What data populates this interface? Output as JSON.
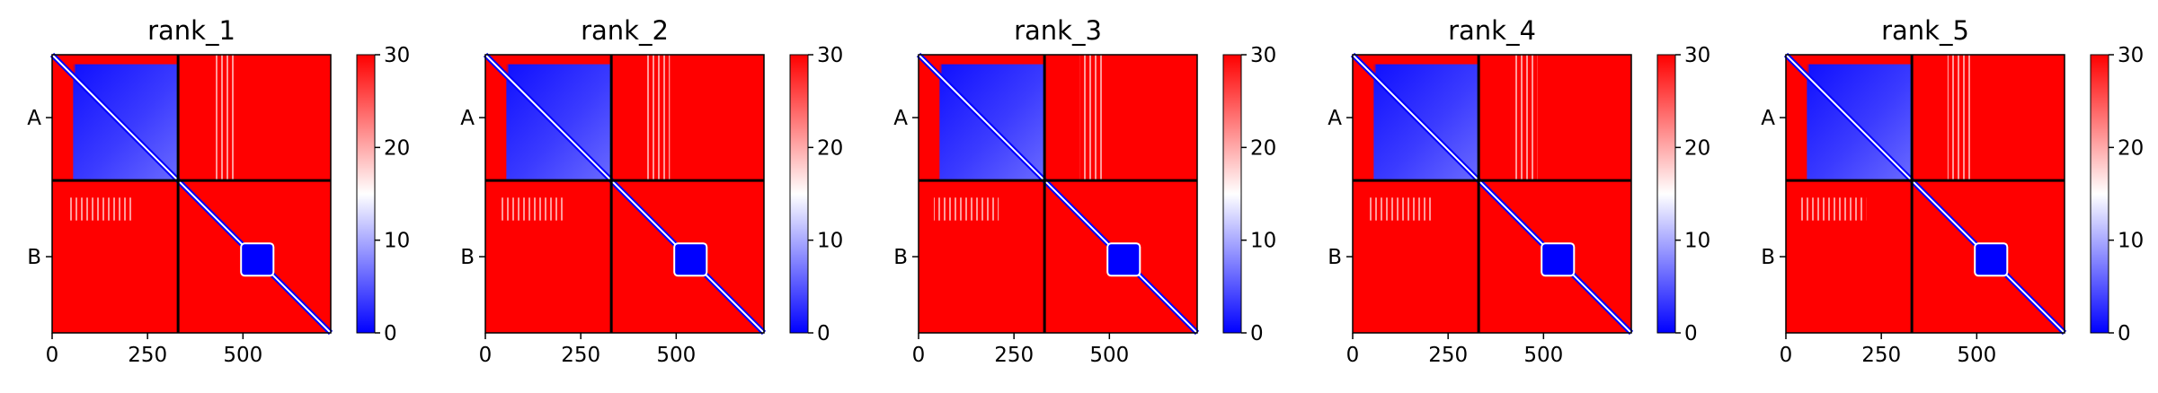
{
  "chart_data": {
    "type": "heatmap",
    "layout": "1 row x 5 panels",
    "chains": [
      "A",
      "B"
    ],
    "chain_boundary": 330,
    "residue_count": 730,
    "xticks": [
      0,
      250,
      500
    ],
    "xtick_labels": [
      "0",
      "250",
      "500"
    ],
    "yticks": [
      "A",
      "B"
    ],
    "colorbar": {
      "vmin": 0,
      "vmax": 30,
      "ticks": [
        0,
        10,
        20,
        30
      ],
      "tick_labels": [
        "0",
        "10",
        "20",
        "30"
      ],
      "colormap": "bwr",
      "colors": {
        "low": "#0000ff",
        "mid": "#ffffff",
        "high": "#ff0000"
      }
    },
    "colors": {
      "divider": "#000000"
    },
    "panels": [
      {
        "title": "rank_1",
        "block_AA": "low",
        "block_AB": "high",
        "block_BA": "high",
        "block_BB": "high, low diagonal band and domain near 500-580"
      },
      {
        "title": "rank_2",
        "block_AA": "low",
        "block_AB": "high",
        "block_BA": "high",
        "block_BB": "high, low diagonal band and domain near 500-580"
      },
      {
        "title": "rank_3",
        "block_AA": "low",
        "block_AB": "high",
        "block_BA": "high",
        "block_BB": "high, low diagonal band and domain near 500-580"
      },
      {
        "title": "rank_4",
        "block_AA": "low",
        "block_AB": "high",
        "block_BA": "high",
        "block_BB": "high, low diagonal band and domain near 500-580"
      },
      {
        "title": "rank_5",
        "block_AA": "low",
        "block_AB": "high",
        "block_BA": "high",
        "block_BB": "high, low diagonal band and domain near 500-580"
      }
    ]
  }
}
